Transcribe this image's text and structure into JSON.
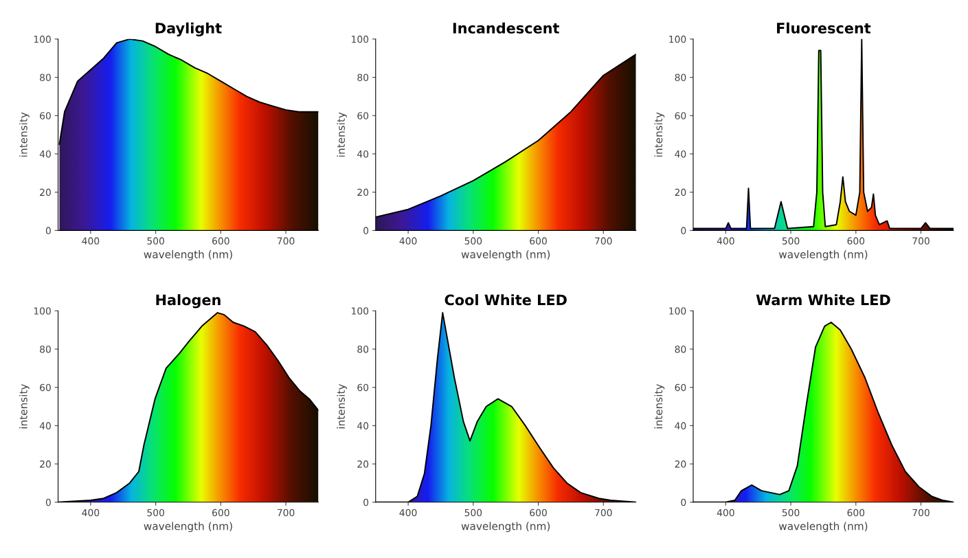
{
  "chart_data": [
    {
      "type": "area",
      "title": "Daylight",
      "xlabel": "wavelength (nm)",
      "ylabel": "intensity",
      "xlim": [
        350,
        750
      ],
      "xticks": [
        400,
        500,
        600,
        700
      ],
      "ylim": [
        0,
        100
      ],
      "yticks": [
        0,
        20,
        40,
        60,
        80,
        100
      ],
      "x": [
        352,
        360,
        380,
        400,
        420,
        440,
        460,
        480,
        500,
        520,
        540,
        560,
        580,
        600,
        620,
        640,
        660,
        680,
        700,
        720,
        740,
        750
      ],
      "series": [
        {
          "color": "#000000",
          "values": [
            45,
            62,
            78,
            84,
            90,
            98,
            100,
            99,
            96,
            92,
            89,
            85,
            82,
            78,
            74,
            70,
            67,
            65,
            63,
            62,
            62,
            62
          ]
        }
      ]
    },
    {
      "type": "area",
      "title": "Incandescent",
      "xlabel": "wavelength (nm)",
      "ylabel": "intensity",
      "xlim": [
        350,
        750
      ],
      "xticks": [
        400,
        500,
        600,
        700
      ],
      "ylim": [
        0,
        100
      ],
      "yticks": [
        0,
        20,
        40,
        60,
        80,
        100
      ],
      "x": [
        350,
        400,
        450,
        500,
        550,
        600,
        650,
        700,
        750
      ],
      "series": [
        {
          "color": "#000000",
          "values": [
            7,
            11,
            18,
            26,
            36,
            47,
            62,
            81,
            92
          ]
        }
      ]
    },
    {
      "type": "area",
      "title": "Fluorescent",
      "xlabel": "wavelength (nm)",
      "ylabel": "intensity",
      "xlim": [
        350,
        750
      ],
      "xticks": [
        400,
        500,
        600,
        700
      ],
      "ylim": [
        0,
        100
      ],
      "yticks": [
        0,
        20,
        40,
        60,
        80,
        100
      ],
      "x": [
        350,
        400,
        404,
        408,
        432,
        435,
        438,
        475,
        480,
        485,
        490,
        495,
        535,
        540,
        543,
        546,
        549,
        553,
        570,
        576,
        580,
        584,
        590,
        600,
        606,
        609,
        612,
        618,
        624,
        627,
        630,
        636,
        648,
        652,
        700,
        707,
        714,
        750
      ],
      "series": [
        {
          "color": "#000000",
          "values": [
            1,
            1,
            4,
            1,
            1,
            22,
            1,
            1,
            8,
            15,
            8,
            1,
            2,
            20,
            94,
            94,
            20,
            2,
            3,
            15,
            28,
            15,
            10,
            8,
            20,
            100,
            20,
            10,
            12,
            19,
            8,
            3,
            5,
            1,
            1,
            4,
            1,
            1
          ]
        }
      ]
    },
    {
      "type": "area",
      "title": "Halogen",
      "xlabel": "wavelength (nm)",
      "ylabel": "intensity",
      "xlim": [
        350,
        750
      ],
      "xticks": [
        400,
        500,
        600,
        700
      ],
      "ylim": [
        0,
        100
      ],
      "yticks": [
        0,
        20,
        40,
        60,
        80,
        100
      ],
      "x": [
        350,
        400,
        420,
        440,
        460,
        474,
        482,
        499,
        516,
        537,
        551,
        571,
        595,
        605,
        619,
        636,
        653,
        671,
        688,
        705,
        722,
        736,
        750
      ],
      "series": [
        {
          "color": "#000000",
          "values": [
            0,
            1,
            2,
            5,
            10,
            16,
            30,
            54,
            70,
            78,
            84,
            92,
            99,
            98,
            94,
            92,
            89,
            82,
            74,
            65,
            58,
            54,
            48
          ]
        }
      ]
    },
    {
      "type": "area",
      "title": "Cool White LED",
      "xlabel": "wavelength (nm)",
      "ylabel": "intensity",
      "xlim": [
        350,
        750
      ],
      "xticks": [
        400,
        500,
        600,
        700
      ],
      "ylim": [
        0,
        100
      ],
      "yticks": [
        0,
        20,
        40,
        60,
        80,
        100
      ],
      "x": [
        350,
        400,
        414,
        425,
        435,
        445,
        453,
        471,
        485,
        495,
        506,
        520,
        538,
        559,
        580,
        601,
        623,
        644,
        665,
        693,
        711,
        750
      ],
      "series": [
        {
          "color": "#000000",
          "values": [
            0,
            0,
            3,
            15,
            40,
            75,
            99,
            65,
            42,
            32,
            42,
            50,
            54,
            50,
            40,
            29,
            18,
            10,
            5,
            2,
            1,
            0
          ]
        }
      ]
    },
    {
      "type": "area",
      "title": "Warm White LED",
      "xlabel": "wavelength (nm)",
      "ylabel": "intensity",
      "xlim": [
        350,
        750
      ],
      "xticks": [
        400,
        500,
        600,
        700
      ],
      "ylim": [
        0,
        100
      ],
      "yticks": [
        0,
        20,
        40,
        60,
        80,
        100
      ],
      "x": [
        350,
        400,
        414,
        424,
        440,
        455,
        483,
        497,
        510,
        524,
        538,
        552,
        562,
        576,
        593,
        614,
        634,
        655,
        676,
        697,
        717,
        733,
        750
      ],
      "series": [
        {
          "color": "#000000",
          "values": [
            0,
            0,
            1,
            6,
            9,
            6,
            4,
            6,
            19,
            51,
            81,
            92,
            94,
            90,
            80,
            65,
            47,
            30,
            16,
            8,
            3,
            1,
            0
          ]
        }
      ]
    }
  ]
}
